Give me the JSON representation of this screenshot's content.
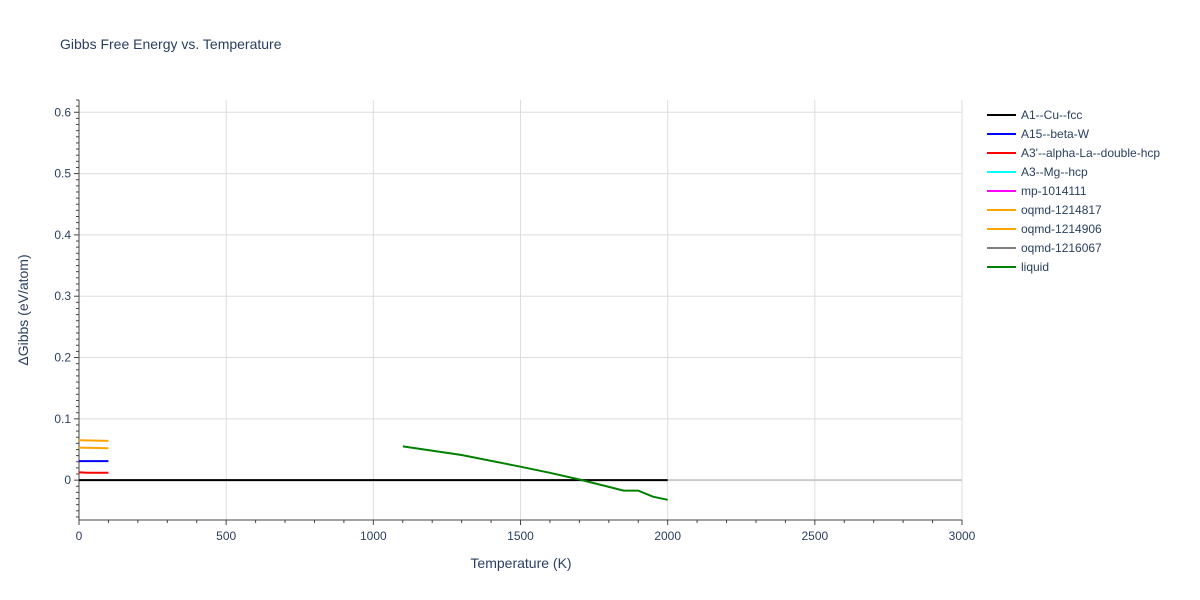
{
  "chart_data": {
    "type": "line",
    "title": "Gibbs Free Energy vs. Temperature",
    "xlabel": "Temperature (K)",
    "ylabel": "ΔGibbs (eV/atom)",
    "xlim": [
      0,
      3000
    ],
    "ylim": [
      -0.065,
      0.62
    ],
    "x_ticks": [
      0,
      500,
      1000,
      1500,
      2000,
      2500,
      3000
    ],
    "x_tick_labels": [
      "0",
      "500",
      "1000",
      "1500",
      "2000",
      "2500",
      "3000"
    ],
    "y_ticks": [
      0,
      0.1,
      0.2,
      0.3,
      0.4,
      0.5,
      0.6
    ],
    "y_tick_labels": [
      "0",
      "0.1",
      "0.2",
      "0.3",
      "0.4",
      "0.5",
      "0.6"
    ],
    "grid": true,
    "legend_position": "top-right",
    "series": [
      {
        "name": "A1--Cu--fcc",
        "color": "#000000",
        "x": [
          0,
          2000
        ],
        "y": [
          0,
          0
        ]
      },
      {
        "name": "A15--beta-W",
        "color": "#0000ff",
        "x": [
          0,
          100
        ],
        "y": [
          0.031,
          0.031
        ]
      },
      {
        "name": "A3'--alpha-La--double-hcp",
        "color": "#ff0000",
        "x": [
          0,
          25,
          100
        ],
        "y": [
          0.013,
          0.012,
          0.012
        ]
      },
      {
        "name": "A3--Mg--hcp",
        "color": "#00ffff",
        "x": [],
        "y": []
      },
      {
        "name": "mp-1014111",
        "color": "#ff00ff",
        "x": [],
        "y": []
      },
      {
        "name": "oqmd-1214817",
        "color": "#ffa500",
        "x": [
          0,
          100
        ],
        "y": [
          0.065,
          0.064
        ]
      },
      {
        "name": "oqmd-1214906",
        "color": "#ffa500",
        "x": [
          0,
          100
        ],
        "y": [
          0.053,
          0.052
        ]
      },
      {
        "name": "oqmd-1216067",
        "color": "#808080",
        "x": [],
        "y": []
      },
      {
        "name": "liquid",
        "color": "#008000",
        "x": [
          1100,
          1300,
          1500,
          1600,
          1700,
          1800,
          1850,
          1900,
          1950,
          2000
        ],
        "y": [
          0.055,
          0.041,
          0.022,
          0.012,
          0.001,
          -0.011,
          -0.017,
          -0.017,
          -0.027,
          -0.032
        ]
      }
    ]
  }
}
